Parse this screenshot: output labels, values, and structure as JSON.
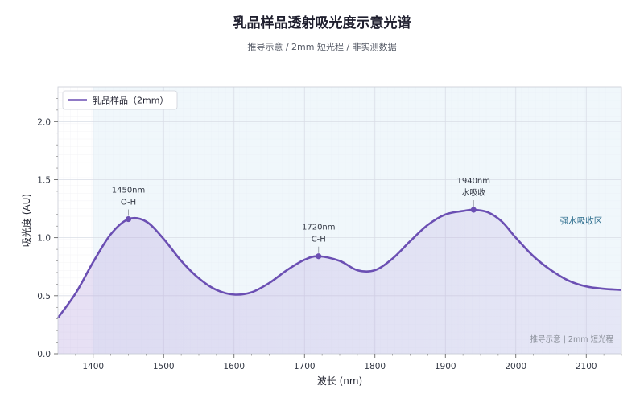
{
  "title": "乳品样品透射吸光度示意光谱",
  "subtitle": "推导示意 / 2mm 短光程 / 非实测数据",
  "chart_data": {
    "type": "line",
    "xlabel": "波长 (nm)",
    "ylabel": "吸光度 (AU)",
    "xlim": [
      1350,
      2150
    ],
    "ylim": [
      0.0,
      2.3
    ],
    "xticks": [
      1400,
      1500,
      1600,
      1700,
      1800,
      1900,
      2000,
      2100
    ],
    "yticks": [
      0.0,
      0.5,
      1.0,
      1.5,
      2.0
    ],
    "ytick_labels": [
      "0.0",
      "0.5",
      "1.0",
      "1.5",
      "2.0"
    ],
    "grid": true,
    "legend_position": "top-left",
    "series": [
      {
        "name": "乳品样品（2mm）",
        "color": "#6b4fb3",
        "x": [
          1350,
          1375,
          1400,
          1425,
          1450,
          1475,
          1500,
          1525,
          1550,
          1575,
          1600,
          1625,
          1650,
          1675,
          1700,
          1720,
          1750,
          1775,
          1800,
          1825,
          1850,
          1875,
          1900,
          1925,
          1940,
          1960,
          1980,
          2000,
          2025,
          2050,
          2075,
          2100,
          2125,
          2150
        ],
        "y": [
          0.31,
          0.52,
          0.79,
          1.03,
          1.16,
          1.14,
          0.99,
          0.8,
          0.65,
          0.55,
          0.51,
          0.53,
          0.61,
          0.72,
          0.81,
          0.84,
          0.8,
          0.72,
          0.72,
          0.82,
          0.97,
          1.11,
          1.2,
          1.23,
          1.24,
          1.22,
          1.14,
          1.0,
          0.84,
          0.72,
          0.63,
          0.58,
          0.56,
          0.55
        ]
      }
    ],
    "highlight_region": {
      "x_start": 1400,
      "x_end": 2150,
      "label": "强水吸收区",
      "color": "#e3f1f7"
    },
    "annotations": [
      {
        "x": 1450,
        "y": 1.16,
        "wavelength": "1450nm",
        "band": "O-H"
      },
      {
        "x": 1720,
        "y": 0.84,
        "wavelength": "1720nm",
        "band": "C-H"
      },
      {
        "x": 1940,
        "y": 1.24,
        "wavelength": "1940nm",
        "band": "水吸收"
      }
    ],
    "watermark": "推导示意 | 2mm 短光程"
  }
}
